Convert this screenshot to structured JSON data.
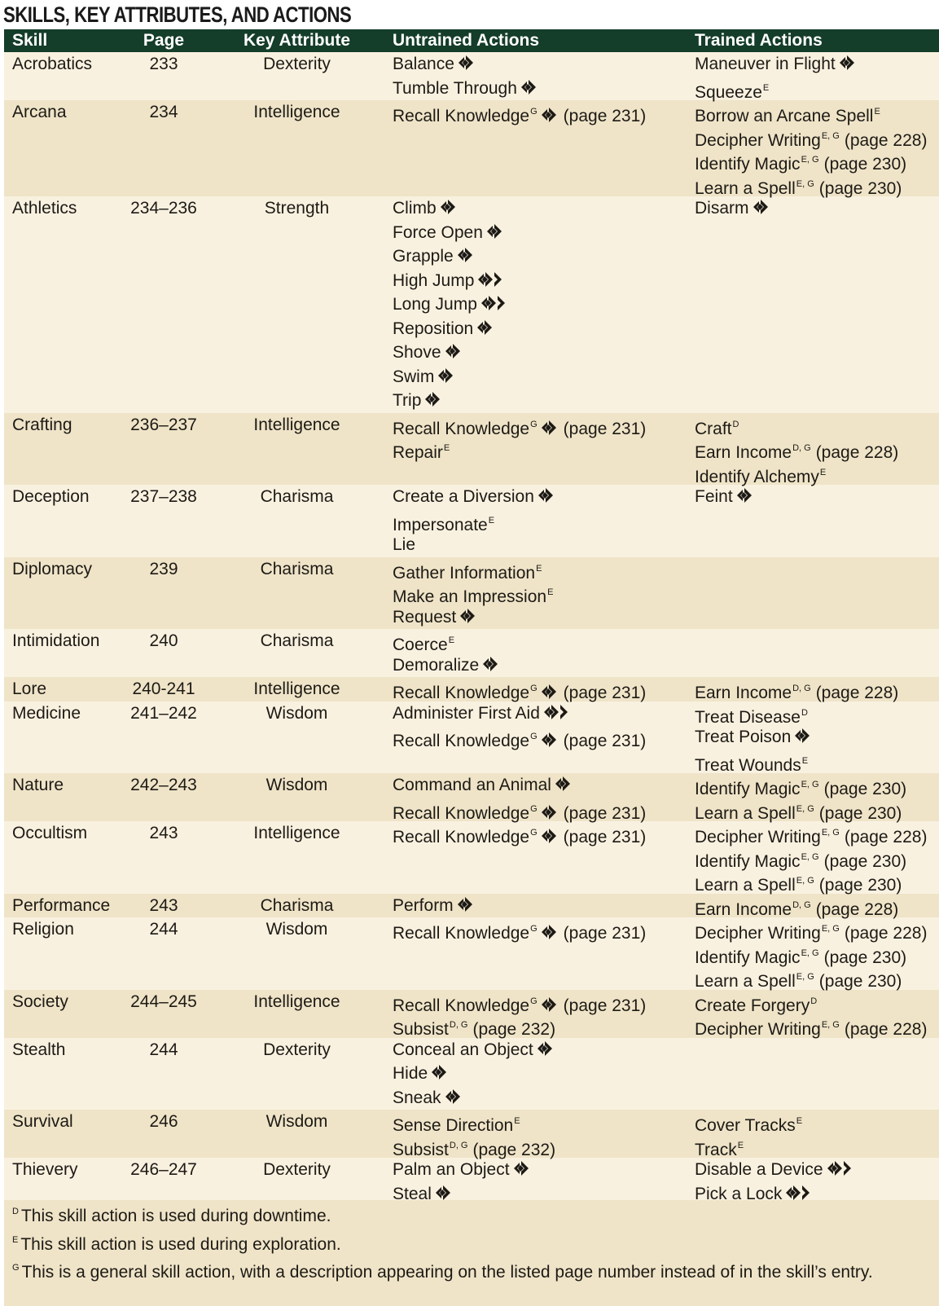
{
  "title": "SKILLS, KEY ATTRIBUTES, AND ACTIONS",
  "headers": {
    "skill": "Skill",
    "page": "Page",
    "key_attribute": "Key Attribute",
    "untrained": "Untrained Actions",
    "trained": "Trained Actions"
  },
  "colors": {
    "header_bg": "#143d2a",
    "row_light": "#f9f1e0",
    "row_dark": "#efe4c8"
  },
  "icons": {
    "one_action": "single-action-icon",
    "two_actions": "two-action-icon"
  },
  "rows": [
    {
      "skill": "Acrobatics",
      "page": "233",
      "attr": "Dexterity",
      "untrained": [
        {
          "name": "Balance",
          "sup": "",
          "icon": "1",
          "ref": ""
        },
        {
          "name": "Tumble Through",
          "sup": "",
          "icon": "1",
          "ref": ""
        }
      ],
      "trained": [
        {
          "name": "Maneuver in Flight",
          "sup": "",
          "icon": "1",
          "ref": ""
        },
        {
          "name": "Squeeze",
          "sup": "E",
          "icon": "",
          "ref": ""
        }
      ]
    },
    {
      "skill": "Arcana",
      "page": "234",
      "attr": "Intelligence",
      "untrained": [
        {
          "name": "Recall Knowledge",
          "sup": "G",
          "icon": "1",
          "ref": "(page 231)"
        }
      ],
      "trained": [
        {
          "name": "Borrow an Arcane Spell",
          "sup": "E",
          "icon": "",
          "ref": ""
        },
        {
          "name": "Decipher Writing",
          "sup": "E, G",
          "icon": "",
          "ref": "(page 228)"
        },
        {
          "name": "Identify Magic",
          "sup": "E, G",
          "icon": "",
          "ref": "(page 230)"
        },
        {
          "name": "Learn a Spell",
          "sup": "E, G",
          "icon": "",
          "ref": "(page 230)"
        }
      ]
    },
    {
      "skill": "Athletics",
      "page": "234–236",
      "attr": "Strength",
      "untrained": [
        {
          "name": "Climb",
          "sup": "",
          "icon": "1",
          "ref": ""
        },
        {
          "name": "Force Open",
          "sup": "",
          "icon": "1",
          "ref": ""
        },
        {
          "name": "Grapple",
          "sup": "",
          "icon": "1",
          "ref": ""
        },
        {
          "name": "High Jump",
          "sup": "",
          "icon": "2",
          "ref": ""
        },
        {
          "name": "Long Jump",
          "sup": "",
          "icon": "2",
          "ref": ""
        },
        {
          "name": "Reposition",
          "sup": "",
          "icon": "1",
          "ref": ""
        },
        {
          "name": "Shove",
          "sup": "",
          "icon": "1",
          "ref": ""
        },
        {
          "name": "Swim",
          "sup": "",
          "icon": "1",
          "ref": ""
        },
        {
          "name": "Trip",
          "sup": "",
          "icon": "1",
          "ref": ""
        }
      ],
      "trained": [
        {
          "name": "Disarm",
          "sup": "",
          "icon": "1",
          "ref": ""
        }
      ]
    },
    {
      "skill": "Crafting",
      "page": "236–237",
      "attr": "Intelligence",
      "untrained": [
        {
          "name": "Recall Knowledge",
          "sup": "G",
          "icon": "1",
          "ref": "(page 231)"
        },
        {
          "name": "Repair",
          "sup": "E",
          "icon": "",
          "ref": ""
        }
      ],
      "trained": [
        {
          "name": "Craft",
          "sup": "D",
          "icon": "",
          "ref": ""
        },
        {
          "name": "Earn Income",
          "sup": "D, G",
          "icon": "",
          "ref": "(page 228)"
        },
        {
          "name": "Identify Alchemy",
          "sup": "E",
          "icon": "",
          "ref": ""
        }
      ]
    },
    {
      "skill": "Deception",
      "page": "237–238",
      "attr": "Charisma",
      "untrained": [
        {
          "name": "Create a Diversion",
          "sup": "",
          "icon": "1",
          "ref": ""
        },
        {
          "name": "Impersonate",
          "sup": "E",
          "icon": "",
          "ref": ""
        },
        {
          "name": "Lie",
          "sup": "",
          "icon": "",
          "ref": ""
        }
      ],
      "trained": [
        {
          "name": "Feint",
          "sup": "",
          "icon": "1",
          "ref": ""
        }
      ]
    },
    {
      "skill": "Diplomacy",
      "page": "239",
      "attr": "Charisma",
      "untrained": [
        {
          "name": "Gather Information",
          "sup": "E",
          "icon": "",
          "ref": ""
        },
        {
          "name": "Make an Impression",
          "sup": "E",
          "icon": "",
          "ref": ""
        },
        {
          "name": "Request",
          "sup": "",
          "icon": "1",
          "ref": ""
        }
      ],
      "trained": []
    },
    {
      "skill": "Intimidation",
      "page": "240",
      "attr": "Charisma",
      "untrained": [
        {
          "name": "Coerce",
          "sup": "E",
          "icon": "",
          "ref": ""
        },
        {
          "name": "Demoralize",
          "sup": "",
          "icon": "1",
          "ref": ""
        }
      ],
      "trained": []
    },
    {
      "skill": "Lore",
      "page": "240-241",
      "attr": "Intelligence",
      "untrained": [
        {
          "name": "Recall Knowledge",
          "sup": "G",
          "icon": "1",
          "ref": "(page 231)"
        }
      ],
      "trained": [
        {
          "name": "Earn Income",
          "sup": "D, G",
          "icon": "",
          "ref": "(page 228)"
        }
      ]
    },
    {
      "skill": "Medicine",
      "page": "241–242",
      "attr": "Wisdom",
      "untrained": [
        {
          "name": "Administer First Aid",
          "sup": "",
          "icon": "2",
          "ref": ""
        },
        {
          "name": "Recall Knowledge",
          "sup": "G",
          "icon": "1",
          "ref": "(page 231)"
        }
      ],
      "trained": [
        {
          "name": "Treat Disease",
          "sup": "D",
          "icon": "",
          "ref": ""
        },
        {
          "name": "Treat Poison",
          "sup": "",
          "icon": "1",
          "ref": ""
        },
        {
          "name": "Treat Wounds",
          "sup": "E",
          "icon": "",
          "ref": ""
        }
      ]
    },
    {
      "skill": "Nature",
      "page": "242–243",
      "attr": "Wisdom",
      "untrained": [
        {
          "name": "Command an Animal",
          "sup": "",
          "icon": "1",
          "ref": ""
        },
        {
          "name": "Recall Knowledge",
          "sup": "G",
          "icon": "1",
          "ref": "(page 231)"
        }
      ],
      "trained": [
        {
          "name": "Identify Magic",
          "sup": "E, G",
          "icon": "",
          "ref": "(page 230)"
        },
        {
          "name": "Learn a Spell",
          "sup": "E, G",
          "icon": "",
          "ref": "(page 230)"
        }
      ]
    },
    {
      "skill": "Occultism",
      "page": "243",
      "attr": "Intelligence",
      "untrained": [
        {
          "name": "Recall Knowledge",
          "sup": "G",
          "icon": "1",
          "ref": "(page 231)"
        }
      ],
      "trained": [
        {
          "name": "Decipher Writing",
          "sup": "E, G",
          "icon": "",
          "ref": "(page 228)"
        },
        {
          "name": "Identify Magic",
          "sup": "E, G",
          "icon": "",
          "ref": "(page 230)"
        },
        {
          "name": "Learn a Spell",
          "sup": "E, G",
          "icon": "",
          "ref": "(page 230)"
        }
      ]
    },
    {
      "skill": "Performance",
      "page": "243",
      "attr": "Charisma",
      "untrained": [
        {
          "name": "Perform",
          "sup": "",
          "icon": "1",
          "ref": ""
        }
      ],
      "trained": [
        {
          "name": "Earn Income",
          "sup": "D, G",
          "icon": "",
          "ref": "(page 228)"
        }
      ]
    },
    {
      "skill": "Religion",
      "page": "244",
      "attr": "Wisdom",
      "untrained": [
        {
          "name": "Recall Knowledge",
          "sup": "G",
          "icon": "1",
          "ref": "(page 231)"
        }
      ],
      "trained": [
        {
          "name": "Decipher Writing",
          "sup": "E, G",
          "icon": "",
          "ref": "(page 228)"
        },
        {
          "name": "Identify Magic",
          "sup": "E, G",
          "icon": "",
          "ref": "(page 230)"
        },
        {
          "name": "Learn a Spell",
          "sup": "E, G",
          "icon": "",
          "ref": "(page 230)"
        }
      ]
    },
    {
      "skill": "Society",
      "page": "244–245",
      "attr": "Intelligence",
      "untrained": [
        {
          "name": "Recall Knowledge",
          "sup": "G",
          "icon": "1",
          "ref": "(page 231)"
        },
        {
          "name": "Subsist",
          "sup": "D, G",
          "icon": "",
          "ref": "(page 232)"
        }
      ],
      "trained": [
        {
          "name": "Create Forgery",
          "sup": "D",
          "icon": "",
          "ref": ""
        },
        {
          "name": "Decipher Writing",
          "sup": "E, G",
          "icon": "",
          "ref": "(page 228)"
        }
      ]
    },
    {
      "skill": "Stealth",
      "page": "244",
      "attr": "Dexterity",
      "untrained": [
        {
          "name": "Conceal an Object",
          "sup": "",
          "icon": "1",
          "ref": ""
        },
        {
          "name": "Hide",
          "sup": "",
          "icon": "1",
          "ref": ""
        },
        {
          "name": "Sneak",
          "sup": "",
          "icon": "1",
          "ref": ""
        }
      ],
      "trained": []
    },
    {
      "skill": "Survival",
      "page": "246",
      "attr": "Wisdom",
      "untrained": [
        {
          "name": "Sense Direction",
          "sup": "E",
          "icon": "",
          "ref": ""
        },
        {
          "name": "Subsist",
          "sup": "D, G",
          "icon": "",
          "ref": "(page 232)"
        }
      ],
      "trained": [
        {
          "name": "Cover Tracks",
          "sup": "E",
          "icon": "",
          "ref": ""
        },
        {
          "name": "Track",
          "sup": "E",
          "icon": "",
          "ref": ""
        }
      ]
    },
    {
      "skill": "Thievery",
      "page": "246–247",
      "attr": "Dexterity",
      "untrained": [
        {
          "name": "Palm an Object",
          "sup": "",
          "icon": "1",
          "ref": ""
        },
        {
          "name": "Steal",
          "sup": "",
          "icon": "1",
          "ref": ""
        }
      ],
      "trained": [
        {
          "name": "Disable a Device",
          "sup": "",
          "icon": "2",
          "ref": ""
        },
        {
          "name": "Pick a Lock",
          "sup": "",
          "icon": "2",
          "ref": ""
        }
      ]
    }
  ],
  "footnotes": [
    {
      "mark": "D",
      "text": "This skill action is used during downtime."
    },
    {
      "mark": "E",
      "text": "This skill action is used during exploration."
    },
    {
      "mark": "G",
      "text": "This is a general skill action, with a description appearing on the listed page number instead of in the skill’s entry."
    }
  ]
}
